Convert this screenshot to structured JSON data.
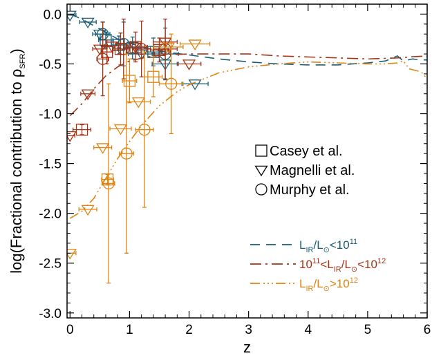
{
  "chart_data": {
    "type": "scatter",
    "xlabel": "z",
    "ylabel_main": "log(Fractional contribution to ρ",
    "ylabel_sub": "SFR",
    "ylabel_close": ")",
    "xlim": [
      -0.05,
      6.0
    ],
    "ylim": [
      -3.05,
      0.1
    ],
    "x_ticks": [
      0,
      1,
      2,
      3,
      4,
      5,
      6
    ],
    "x_tick_labels": [
      "0",
      "1",
      "2",
      "3",
      "4",
      "5",
      "6"
    ],
    "y_ticks": [
      0.0,
      -0.5,
      -1.0,
      -1.5,
      -2.0,
      -2.5,
      -3.0
    ],
    "y_tick_labels": [
      "0.0",
      "-0.5",
      "-1.0",
      "-1.5",
      "-2.0",
      "-2.5",
      "-3.0"
    ],
    "grid": false,
    "marker_legend": [
      {
        "symbol": "square",
        "label": "Casey et al."
      },
      {
        "symbol": "triangle",
        "label": "Magnelli et al."
      },
      {
        "symbol": "circle",
        "label": "Murphy et al."
      }
    ],
    "series": [
      {
        "name_parts": [
          [
            "L",
            "n"
          ],
          [
            "IR",
            "sub"
          ],
          [
            "/L",
            "n"
          ],
          [
            "⊙",
            "sub"
          ],
          [
            "<10",
            "n"
          ],
          [
            "11",
            "sup"
          ]
        ],
        "color": "#1a5e75",
        "dash": "14,9",
        "curve": [
          [
            0.0,
            0.0
          ],
          [
            0.2,
            -0.05
          ],
          [
            0.5,
            -0.15
          ],
          [
            0.8,
            -0.25
          ],
          [
            1.2,
            -0.33
          ],
          [
            1.6,
            -0.38
          ],
          [
            2.0,
            -0.41
          ],
          [
            2.5,
            -0.45
          ],
          [
            3.0,
            -0.48
          ],
          [
            3.5,
            -0.5
          ],
          [
            4.0,
            -0.51
          ],
          [
            4.5,
            -0.51
          ],
          [
            5.0,
            -0.49
          ],
          [
            5.3,
            -0.47
          ],
          [
            5.5,
            -0.42
          ],
          [
            5.6,
            -0.47
          ],
          [
            5.75,
            -0.45
          ],
          [
            5.9,
            -0.46
          ],
          [
            6.0,
            -0.46
          ]
        ],
        "points": [
          {
            "m": "triangle",
            "x": 0.0,
            "y": -0.01,
            "xe": 0.1,
            "ye": 0
          },
          {
            "m": "triangle",
            "x": 0.3,
            "y": -0.08,
            "xe": 0.14,
            "ye": 0
          },
          {
            "m": "triangle",
            "x": 0.5,
            "y": -0.2,
            "xe": 0.12,
            "ye": 0
          },
          {
            "m": "triangle",
            "x": 1.2,
            "y": -0.4,
            "xe": 0.22,
            "ye": 0
          },
          {
            "m": "triangle",
            "x": 1.6,
            "y": -0.5,
            "xe": 0.22,
            "ye": 0
          },
          {
            "m": "triangle",
            "x": 2.1,
            "y": -0.7,
            "xe": 0.22,
            "ye": 0
          },
          {
            "m": "square",
            "x": 0.6,
            "y": -0.26,
            "xe": 0.12,
            "ye": 0.08
          },
          {
            "m": "square",
            "x": 0.82,
            "y": -0.31,
            "xe": 0.12,
            "ye": 0.09
          },
          {
            "m": "square",
            "x": 1.05,
            "y": -0.34,
            "xe": 0.15,
            "ye": 0.11
          },
          {
            "m": "square",
            "x": 1.4,
            "y": -0.38,
            "xe": 0.15,
            "ye": 0.14
          },
          {
            "m": "circle",
            "x": 0.55,
            "y": -0.2,
            "xe": 0.12,
            "ye": 0.12
          },
          {
            "m": "circle",
            "x": 0.9,
            "y": -0.3,
            "xe": 0.12,
            "ye": 0.22
          },
          {
            "m": "circle",
            "x": 1.6,
            "y": -0.4,
            "xe": 0.22,
            "ye": 0.26
          }
        ]
      },
      {
        "name_parts": [
          [
            "10",
            "n"
          ],
          [
            "11",
            "sup"
          ],
          [
            "<L",
            "n"
          ],
          [
            "IR",
            "sub"
          ],
          [
            "/L",
            "n"
          ],
          [
            "⊙",
            "sub"
          ],
          [
            "<10",
            "n"
          ],
          [
            "12",
            "sup"
          ]
        ],
        "color": "#a33315",
        "dash": "16,6,3,6",
        "curve": [
          [
            0.0,
            -1.02
          ],
          [
            0.2,
            -0.9
          ],
          [
            0.4,
            -0.75
          ],
          [
            0.6,
            -0.62
          ],
          [
            0.8,
            -0.53
          ],
          [
            1.0,
            -0.47
          ],
          [
            1.3,
            -0.43
          ],
          [
            1.6,
            -0.41
          ],
          [
            2.0,
            -0.4
          ],
          [
            2.5,
            -0.4
          ],
          [
            3.0,
            -0.4
          ],
          [
            3.5,
            -0.42
          ],
          [
            4.0,
            -0.43
          ],
          [
            4.5,
            -0.44
          ],
          [
            5.0,
            -0.45
          ],
          [
            5.5,
            -0.44
          ],
          [
            5.7,
            -0.43
          ],
          [
            6.0,
            -0.42
          ]
        ],
        "points": [
          {
            "m": "triangle",
            "x": 0.0,
            "y": -1.22,
            "xe": 0.08,
            "ye": 0
          },
          {
            "m": "triangle",
            "x": 0.3,
            "y": -0.8,
            "xe": 0.12,
            "ye": 0
          },
          {
            "m": "triangle",
            "x": 0.5,
            "y": -0.35,
            "xe": 0.12,
            "ye": 0
          },
          {
            "m": "triangle",
            "x": 0.7,
            "y": -0.32,
            "xe": 0.12,
            "ye": 0
          },
          {
            "m": "triangle",
            "x": 1.1,
            "y": -0.33,
            "xe": 0.2,
            "ye": 0
          },
          {
            "m": "triangle",
            "x": 1.6,
            "y": -0.28,
            "xe": 0.2,
            "ye": 0
          },
          {
            "m": "triangle",
            "x": 2.0,
            "y": -0.5,
            "xe": 0.2,
            "ye": 0
          },
          {
            "m": "square",
            "x": 0.2,
            "y": -1.16,
            "xe": 0.15,
            "ye": 0.05
          },
          {
            "m": "square",
            "x": 0.62,
            "y": -0.38,
            "xe": 0.1,
            "ye": 0.12
          },
          {
            "m": "square",
            "x": 0.85,
            "y": -0.35,
            "xe": 0.1,
            "ye": 0.16
          },
          {
            "m": "square",
            "x": 1.1,
            "y": -0.33,
            "xe": 0.15,
            "ye": 0.15
          },
          {
            "m": "square",
            "x": 1.5,
            "y": -0.36,
            "xe": 0.15,
            "ye": 0.12
          },
          {
            "m": "circle",
            "x": 0.55,
            "y": -0.45,
            "xe": 0.1,
            "ye": 0.37
          },
          {
            "m": "circle",
            "x": 0.9,
            "y": -0.35,
            "xe": 0.1,
            "ye": 0.3
          },
          {
            "m": "circle",
            "x": 1.2,
            "y": -0.35,
            "xe": 0.15,
            "ye": 0.28
          },
          {
            "m": "circle",
            "x": 1.6,
            "y": -0.35,
            "xe": 0.2,
            "ye": 0.3
          }
        ]
      },
      {
        "name_parts": [
          [
            "L",
            "n"
          ],
          [
            "IR",
            "sub"
          ],
          [
            "/L",
            "n"
          ],
          [
            "⊙",
            "sub"
          ],
          [
            ">10",
            "n"
          ],
          [
            "12",
            "sup"
          ]
        ],
        "color": "#e0820e",
        "dash": "14,5,2,4,2,4,2,4",
        "curve": [
          [
            0.0,
            -2.05
          ],
          [
            0.2,
            -1.98
          ],
          [
            0.4,
            -1.85
          ],
          [
            0.6,
            -1.65
          ],
          [
            0.8,
            -1.45
          ],
          [
            1.0,
            -1.28
          ],
          [
            1.2,
            -1.12
          ],
          [
            1.5,
            -0.92
          ],
          [
            1.8,
            -0.78
          ],
          [
            2.0,
            -0.71
          ],
          [
            2.5,
            -0.59
          ],
          [
            3.0,
            -0.53
          ],
          [
            3.5,
            -0.5
          ],
          [
            4.0,
            -0.48
          ],
          [
            4.5,
            -0.49
          ],
          [
            5.0,
            -0.5
          ],
          [
            5.3,
            -0.5
          ],
          [
            5.5,
            -0.49
          ],
          [
            5.6,
            -0.47
          ],
          [
            5.7,
            -0.55
          ],
          [
            5.9,
            -0.58
          ],
          [
            6.0,
            -0.65
          ]
        ],
        "points": [
          {
            "m": "triangle",
            "x": 0.0,
            "y": -2.4,
            "xe": 0.1,
            "ye": 0
          },
          {
            "m": "triangle",
            "x": 0.3,
            "y": -1.96,
            "xe": 0.15,
            "ye": 0
          },
          {
            "m": "triangle",
            "x": 0.55,
            "y": -1.34,
            "xe": 0.15,
            "ye": 0
          },
          {
            "m": "triangle",
            "x": 0.85,
            "y": -1.15,
            "xe": 0.18,
            "ye": 0
          },
          {
            "m": "triangle",
            "x": 1.15,
            "y": -0.88,
            "xe": 0.2,
            "ye": 0
          },
          {
            "m": "triangle",
            "x": 1.65,
            "y": -0.33,
            "xe": 0.25,
            "ye": 0
          },
          {
            "m": "triangle",
            "x": 2.1,
            "y": -0.3,
            "xe": 0.25,
            "ye": 0
          },
          {
            "m": "square",
            "x": 0.63,
            "y": -1.66,
            "xe": 0.1,
            "ye": 0.05
          },
          {
            "m": "square",
            "x": 1.0,
            "y": -0.67,
            "xe": 0.12,
            "ye": 0.22
          },
          {
            "m": "square",
            "x": 1.4,
            "y": -0.63,
            "xe": 0.15,
            "ye": 0.2
          },
          {
            "m": "circle",
            "x": 0.65,
            "y": -1.7,
            "xe": 0.1,
            "ye": 1.0
          },
          {
            "m": "circle",
            "x": 0.95,
            "y": -1.4,
            "xe": 0.12,
            "ye": 1.0
          },
          {
            "m": "circle",
            "x": 1.25,
            "y": -1.16,
            "xe": 0.15,
            "ye": 0.78
          },
          {
            "m": "circle",
            "x": 1.7,
            "y": -0.7,
            "xe": 0.2,
            "ye": 0.5
          }
        ]
      }
    ]
  }
}
